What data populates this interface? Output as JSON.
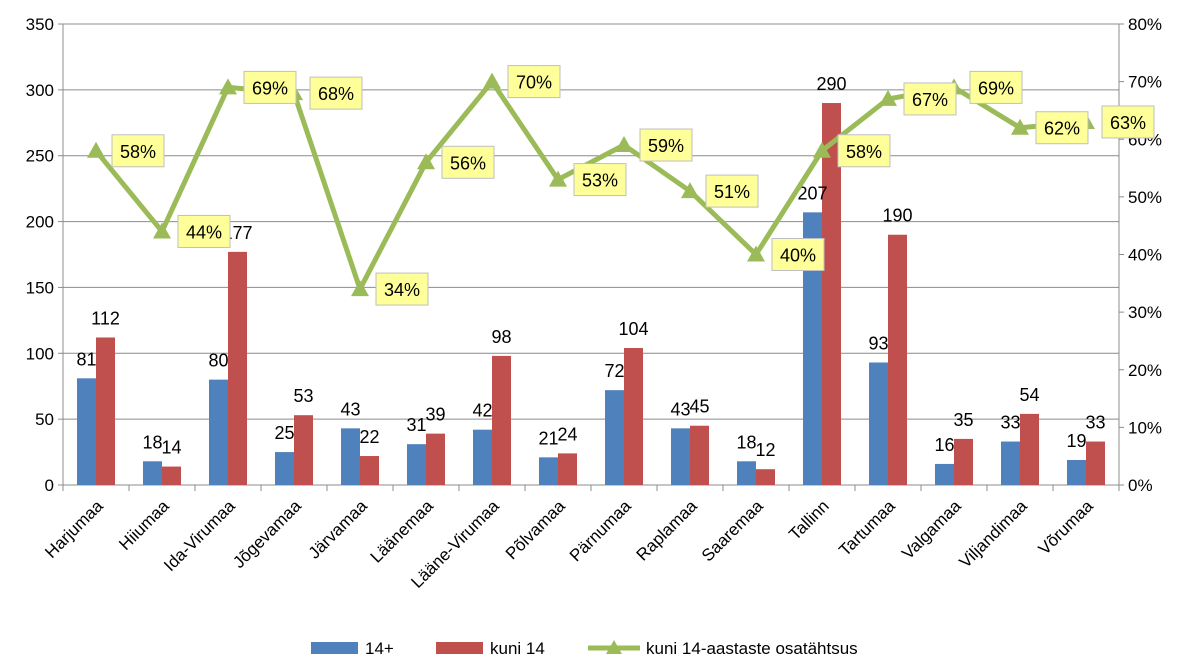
{
  "chart_data": {
    "type": "bar",
    "categories": [
      "Harjumaa",
      "Hiiumaa",
      "Ida-Virumaa",
      "Jõgevamaa",
      "Järvamaa",
      "Läänemaa",
      "Lääne-Virumaa",
      "Põlvamaa",
      "Pärnumaa",
      "Raplamaa",
      "Saaremaa",
      "Tallinn",
      "Tartumaa",
      "Valgamaa",
      "Viljandimaa",
      "Võrumaa"
    ],
    "series": [
      {
        "name": "14+",
        "type": "bar",
        "axis": "left",
        "color": "#4f81bd",
        "values": [
          81,
          18,
          80,
          25,
          43,
          31,
          42,
          21,
          72,
          43,
          18,
          207,
          93,
          16,
          33,
          19
        ],
        "labels": [
          "81",
          "18",
          "80",
          "25",
          "43",
          "31",
          "42",
          "21",
          "72",
          "43",
          "18",
          "207",
          "93",
          "16",
          "33",
          "19"
        ]
      },
      {
        "name": "kuni 14",
        "type": "bar",
        "axis": "left",
        "color": "#c0504d",
        "values": [
          112,
          14,
          177,
          53,
          22,
          39,
          98,
          24,
          104,
          45,
          12,
          290,
          190,
          35,
          54,
          33
        ],
        "labels": [
          "112",
          "14",
          "177",
          "53",
          "22",
          "39",
          "98",
          "24",
          "104",
          "45",
          "12",
          "290",
          "190",
          "35",
          "54",
          "33"
        ]
      },
      {
        "name": "kuni 14-aastaste osatähtsus",
        "type": "line",
        "axis": "right",
        "color": "#9bbb59",
        "values": [
          0.58,
          0.44,
          0.69,
          0.68,
          0.34,
          0.56,
          0.7,
          0.53,
          0.59,
          0.51,
          0.4,
          0.58,
          0.67,
          0.69,
          0.62,
          0.63
        ],
        "labels": [
          "58%",
          "44%",
          "69%",
          "68%",
          "34%",
          "56%",
          "70%",
          "53%",
          "59%",
          "51%",
          "40%",
          "58%",
          "67%",
          "69%",
          "62%",
          "63%"
        ]
      }
    ],
    "y_left": {
      "min": 0,
      "max": 350,
      "ticks": [
        0,
        50,
        100,
        150,
        200,
        250,
        300,
        350
      ],
      "tick_labels": [
        "0",
        "50",
        "100",
        "150",
        "200",
        "250",
        "300",
        "350"
      ]
    },
    "y_right": {
      "min": 0,
      "max": 0.8,
      "ticks": [
        0,
        0.1,
        0.2,
        0.3,
        0.4,
        0.5,
        0.6,
        0.7,
        0.8
      ],
      "tick_labels": [
        "0%",
        "10%",
        "20%",
        "30%",
        "40%",
        "50%",
        "60%",
        "70%",
        "80%"
      ]
    },
    "grid": true,
    "legend_position": "bottom",
    "title": "",
    "xlabel": "",
    "ylabel": ""
  }
}
